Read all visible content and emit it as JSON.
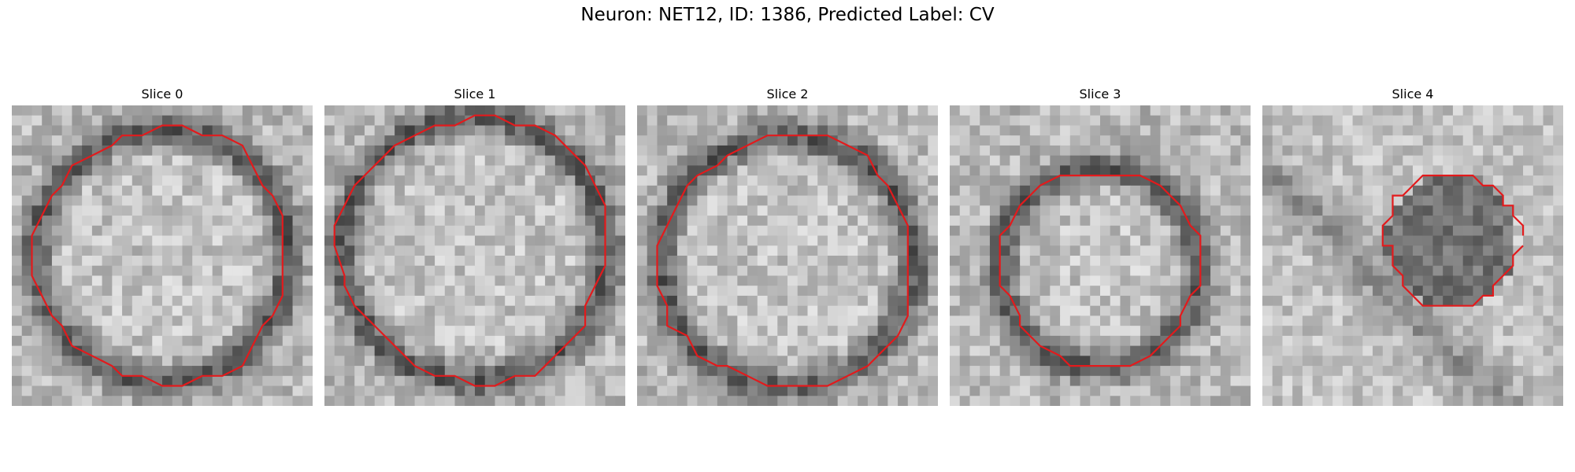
{
  "figure": {
    "title": "Neuron: NET12, ID: 1386, Predicted Label: CV",
    "colormap": "gray",
    "contour_color": "#e31a1c",
    "slices": [
      {
        "label": "Slice 0",
        "seed": 11,
        "shape": "ring",
        "center": [
          0.5,
          0.5
        ],
        "radius": 0.42
      },
      {
        "label": "Slice 1",
        "seed": 23,
        "shape": "ring",
        "center": [
          0.5,
          0.48
        ],
        "radius": 0.44
      },
      {
        "label": "Slice 2",
        "seed": 37,
        "shape": "ring",
        "center": [
          0.5,
          0.52
        ],
        "radius": 0.42
      },
      {
        "label": "Slice 3",
        "seed": 41,
        "shape": "ring",
        "center": [
          0.5,
          0.54
        ],
        "radius": 0.33
      },
      {
        "label": "Slice 4",
        "seed": 59,
        "shape": "blob",
        "center": [
          0.63,
          0.45
        ],
        "radius": 0.22
      }
    ]
  }
}
